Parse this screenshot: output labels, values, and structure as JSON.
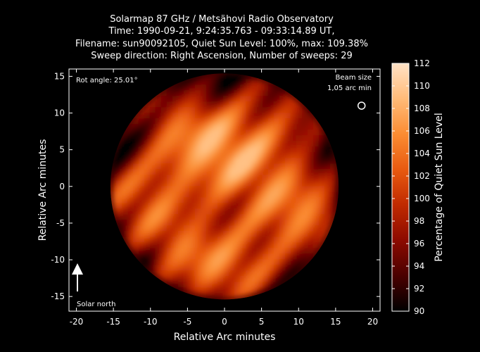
{
  "chart_data": {
    "type": "heatmap",
    "title_lines": [
      "Solarmap 87 GHz / Metsähovi Radio Observatory",
      "Time: 1990-09-21,  9:24:35.763 - 09:33:14.89 UT,",
      "Filename: sun90092105, Quiet Sun Level: 100%, max: 109.38%",
      "Sweep direction: Right Ascension, Number of sweeps: 29"
    ],
    "xlabel": "Relative Arc minutes",
    "ylabel": "Relative Arc minutes",
    "xlim": [
      -21,
      21
    ],
    "ylim": [
      -17,
      16
    ],
    "xticks": [
      -20,
      -15,
      -10,
      -5,
      0,
      5,
      10,
      15,
      20
    ],
    "yticks": [
      -15,
      -10,
      -5,
      0,
      5,
      10,
      15
    ],
    "disk": {
      "center": [
        0,
        0
      ],
      "radius_arcmin": 15.4,
      "quiet_sun_level_percent": 100,
      "max_percent": 109.38
    },
    "annotations": {
      "rot_angle": "Rot angle: 25.01°",
      "beam_size_line1": "Beam size",
      "beam_size_line2": "1,05 arc min",
      "solar_north": "Solar north",
      "beam_marker": [
        18.5,
        11
      ]
    },
    "colorbar": {
      "label": "Percentage of Quiet Sun Level",
      "min": 90,
      "max": 112,
      "ticks": [
        90,
        92,
        94,
        96,
        98,
        100,
        102,
        104,
        106,
        108,
        110,
        112
      ],
      "colormap": [
        "#000000",
        "#4a0000",
        "#8c0a00",
        "#c02a00",
        "#e85a10",
        "#fb8c32",
        "#ffbb78",
        "#ffe2c6"
      ]
    }
  }
}
